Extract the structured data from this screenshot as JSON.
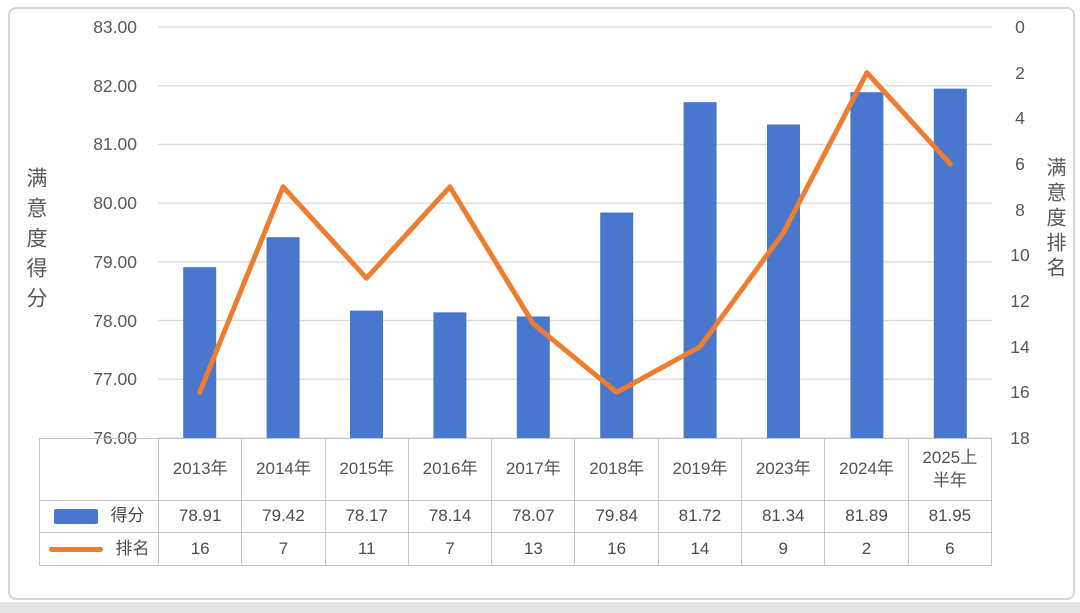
{
  "chart_data": {
    "type": "bar",
    "subtype": "combo-bar-line",
    "categories": [
      "2013年",
      "2014年",
      "2015年",
      "2016年",
      "2017年",
      "2018年",
      "2019年",
      "2023年",
      "2024年",
      "2025上半年"
    ],
    "series": [
      {
        "name": "得分",
        "chart": "bar",
        "axis": "left",
        "color": "#4a77ce",
        "values": [
          78.91,
          79.42,
          78.17,
          78.14,
          78.07,
          79.84,
          81.72,
          81.34,
          81.89,
          81.95
        ],
        "labels": [
          "78.91",
          "79.42",
          "78.17",
          "78.14",
          "78.07",
          "79.84",
          "81.72",
          "81.34",
          "81.89",
          "81.95"
        ]
      },
      {
        "name": "排名",
        "chart": "line",
        "axis": "right",
        "color": "#ee7d2f",
        "values": [
          16,
          7,
          11,
          7,
          13,
          16,
          14,
          9,
          2,
          6
        ],
        "labels": [
          "16",
          "7",
          "11",
          "7",
          "13",
          "16",
          "14",
          "9",
          "2",
          "6"
        ]
      }
    ],
    "left_axis": {
      "title": "满意度得分",
      "min": 76,
      "max": 83,
      "tick_step": 1,
      "ticks": [
        "83.00",
        "82.00",
        "81.00",
        "80.00",
        "79.00",
        "78.00",
        "77.00",
        "76.00"
      ]
    },
    "right_axis": {
      "title": "满意度排名",
      "min": 0,
      "max": 18,
      "tick_step": 2,
      "inverted": true,
      "ticks": [
        "0",
        "2",
        "4",
        "6",
        "8",
        "10",
        "12",
        "14",
        "16",
        "18"
      ]
    },
    "grid": true,
    "legend_position": "table-left-column"
  },
  "colors": {
    "bar": "#4a77ce",
    "line": "#ee7d2f",
    "gridline": "#d9d9d9",
    "table_border": "#c6c6c6",
    "axis_text": "#595959",
    "table_text": "#4d4d4d",
    "card_border": "#d6d6d6",
    "page_strip": "#e3e3e3"
  }
}
